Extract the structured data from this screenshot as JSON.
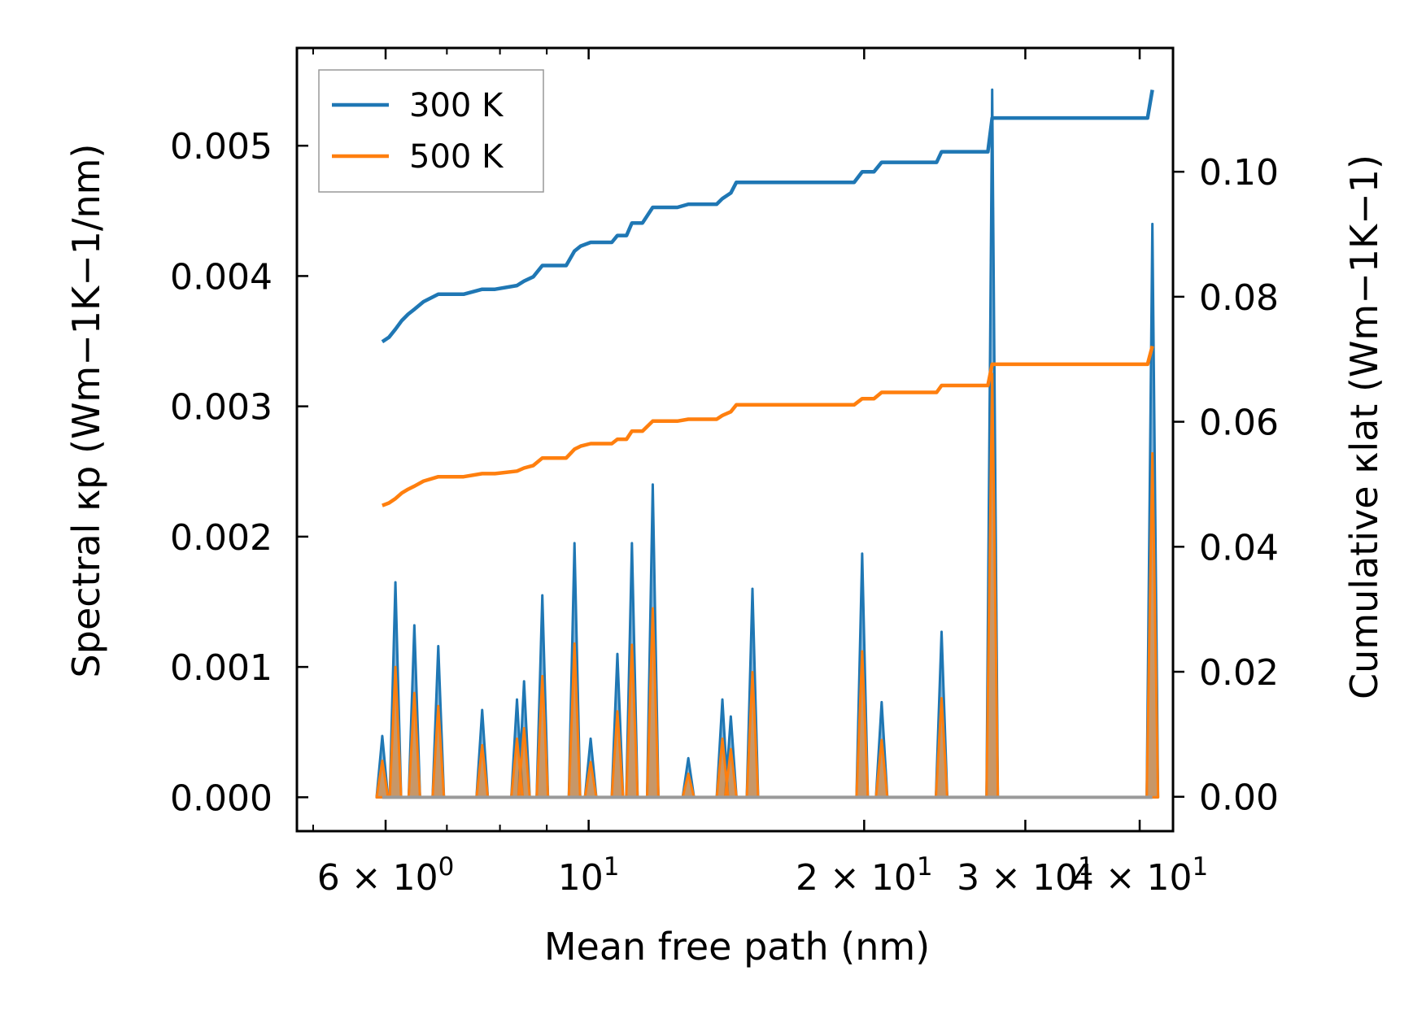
{
  "chart_data": {
    "type": "line",
    "title": "",
    "xlabel": "Mean free path (nm)",
    "ylabel_left": "Spectral κp (Wm−1K−1/nm)",
    "ylabel_right": "Cumulative κlat (Wm−1K−1)",
    "xscale": "log",
    "xlim": [
      4.8,
      43.5
    ],
    "ylim_left": [
      -0.00026,
      0.00575
    ],
    "ylim_right": [
      -0.0055,
      0.1198
    ],
    "x_ticks": [
      {
        "value": 6,
        "label": "6 × 10^0",
        "mantissa": "6 × 10",
        "exp": "0"
      },
      {
        "value": 10,
        "label": "10^1",
        "mantissa": "10",
        "exp": "1"
      },
      {
        "value": 20,
        "label": "2 × 10^1",
        "mantissa": "2 × 10",
        "exp": "1"
      },
      {
        "value": 30,
        "label": "3 × 10^1",
        "mantissa": "3 × 10",
        "exp": "1"
      },
      {
        "value": 40,
        "label": "4 × 10^1",
        "mantissa": "4 × 10",
        "exp": "1"
      }
    ],
    "x_minor_ticks": [
      5,
      7,
      8,
      9
    ],
    "y_left_ticks": [
      {
        "value": 0.0,
        "label": "0.000"
      },
      {
        "value": 0.001,
        "label": "0.001"
      },
      {
        "value": 0.002,
        "label": "0.002"
      },
      {
        "value": 0.003,
        "label": "0.003"
      },
      {
        "value": 0.004,
        "label": "0.004"
      },
      {
        "value": 0.005,
        "label": "0.005"
      }
    ],
    "y_right_ticks": [
      {
        "value": 0.0,
        "label": "0.00"
      },
      {
        "value": 0.02,
        "label": "0.02"
      },
      {
        "value": 0.04,
        "label": "0.04"
      },
      {
        "value": 0.06,
        "label": "0.06"
      },
      {
        "value": 0.08,
        "label": "0.08"
      },
      {
        "value": 0.1,
        "label": "0.10"
      }
    ],
    "legend": {
      "position": "top-left",
      "entries": [
        {
          "name": "300 K",
          "color": "#1f77b4"
        },
        {
          "name": "500 K",
          "color": "#ff7f0e"
        }
      ]
    },
    "spectral_peaks": [
      {
        "x": 5.95,
        "s300": 0.00047,
        "s500": 0.00028
      },
      {
        "x": 6.15,
        "s300": 0.00165,
        "s500": 0.001
      },
      {
        "x": 6.45,
        "s300": 0.00132,
        "s500": 0.0008
      },
      {
        "x": 6.85,
        "s300": 0.00116,
        "s500": 0.0007
      },
      {
        "x": 7.65,
        "s300": 0.00067,
        "s500": 0.0004
      },
      {
        "x": 8.35,
        "s300": 0.00075,
        "s500": 0.00045
      },
      {
        "x": 8.5,
        "s300": 0.00089,
        "s500": 0.00053
      },
      {
        "x": 8.9,
        "s300": 0.00155,
        "s500": 0.00093
      },
      {
        "x": 9.65,
        "s300": 0.00195,
        "s500": 0.00118
      },
      {
        "x": 10.05,
        "s300": 0.00045,
        "s500": 0.00027
      },
      {
        "x": 10.75,
        "s300": 0.0011,
        "s500": 0.00066
      },
      {
        "x": 11.15,
        "s300": 0.00195,
        "s500": 0.00117
      },
      {
        "x": 11.75,
        "s300": 0.0024,
        "s500": 0.00145
      },
      {
        "x": 12.85,
        "s300": 0.0003,
        "s500": 0.00018
      },
      {
        "x": 14.0,
        "s300": 0.00075,
        "s500": 0.00045
      },
      {
        "x": 14.3,
        "s300": 0.00062,
        "s500": 0.00037
      },
      {
        "x": 15.1,
        "s300": 0.0016,
        "s500": 0.00096
      },
      {
        "x": 19.9,
        "s300": 0.00187,
        "s500": 0.00112
      },
      {
        "x": 20.9,
        "s300": 0.00073,
        "s500": 0.00044
      },
      {
        "x": 24.3,
        "s300": 0.00127,
        "s500": 0.00076
      },
      {
        "x": 27.6,
        "s300": 0.00543,
        "s500": 0.00325
      },
      {
        "x": 41.3,
        "s300": 0.0044,
        "s500": 0.00264
      }
    ],
    "series": [
      {
        "name": "300 K",
        "color": "#1f77b4",
        "x": [
          5.95,
          6.05,
          6.15,
          6.25,
          6.35,
          6.45,
          6.6,
          6.85,
          7.3,
          7.65,
          7.9,
          8.35,
          8.5,
          8.7,
          8.9,
          9.45,
          9.65,
          9.8,
          10.05,
          10.6,
          10.75,
          11.0,
          11.15,
          11.45,
          11.75,
          12.5,
          12.85,
          13.8,
          14.0,
          14.3,
          14.5,
          15.1,
          19.5,
          19.9,
          20.5,
          20.9,
          24.0,
          24.3,
          27.3,
          27.6,
          40.8,
          41.3
        ],
        "cumulative": [
          0.0728,
          0.0735,
          0.0748,
          0.0762,
          0.0772,
          0.078,
          0.0792,
          0.0804,
          0.0804,
          0.0812,
          0.0812,
          0.0818,
          0.0825,
          0.0832,
          0.085,
          0.085,
          0.0873,
          0.0881,
          0.0887,
          0.0887,
          0.0898,
          0.0898,
          0.0918,
          0.0918,
          0.0943,
          0.0943,
          0.0948,
          0.0948,
          0.0957,
          0.0966,
          0.0983,
          0.0983,
          0.0983,
          0.1,
          0.1,
          0.1015,
          0.1015,
          0.1032,
          0.1032,
          0.1086,
          0.1086,
          0.1131
        ]
      },
      {
        "name": "500 K",
        "color": "#ff7f0e",
        "x": [
          5.95,
          6.05,
          6.15,
          6.25,
          6.35,
          6.45,
          6.6,
          6.85,
          7.3,
          7.65,
          7.9,
          8.35,
          8.5,
          8.7,
          8.9,
          9.45,
          9.65,
          9.8,
          10.05,
          10.6,
          10.75,
          11.0,
          11.15,
          11.45,
          11.75,
          12.5,
          12.85,
          13.8,
          14.0,
          14.3,
          14.5,
          15.1,
          19.5,
          19.9,
          20.5,
          20.9,
          24.0,
          24.3,
          27.3,
          27.6,
          40.8,
          41.3
        ],
        "cumulative": [
          0.0466,
          0.047,
          0.0477,
          0.0486,
          0.0492,
          0.0497,
          0.0505,
          0.0512,
          0.0512,
          0.0517,
          0.0517,
          0.0521,
          0.0526,
          0.053,
          0.0542,
          0.0542,
          0.0556,
          0.0561,
          0.0565,
          0.0565,
          0.0572,
          0.0572,
          0.0585,
          0.0585,
          0.0601,
          0.0601,
          0.0604,
          0.0604,
          0.061,
          0.0616,
          0.0627,
          0.0627,
          0.0627,
          0.0637,
          0.0637,
          0.0647,
          0.0647,
          0.0658,
          0.0658,
          0.0692,
          0.0692,
          0.0721
        ]
      }
    ]
  }
}
